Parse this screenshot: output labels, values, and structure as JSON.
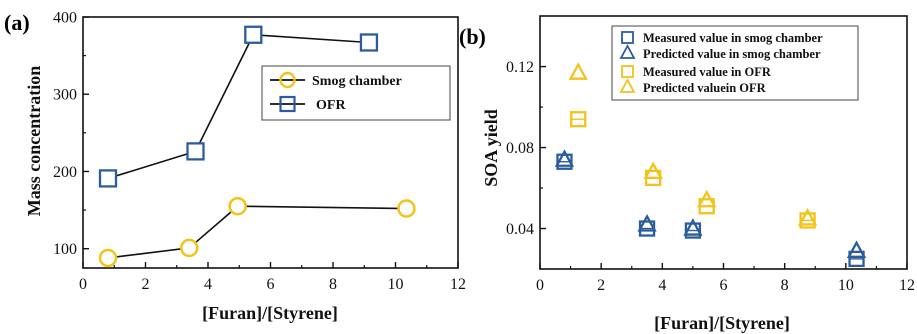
{
  "chart_data": [
    {
      "panel_label": "(a)",
      "type": "line",
      "xlabel": "[Furan]/[Styrene]",
      "ylabel": "Mass concentration",
      "xlim": [
        0,
        12
      ],
      "ylim": [
        75,
        400
      ],
      "x_ticks": [
        0,
        2,
        4,
        6,
        8,
        10,
        12
      ],
      "y_ticks": [
        100,
        200,
        300,
        400
      ],
      "legend_position": "upper-right",
      "series": [
        {
          "name": "Smog chamber",
          "marker": "circle",
          "color": "#F2C318",
          "x": [
            0.8,
            3.4,
            4.95,
            10.35
          ],
          "y": [
            88,
            101,
            155,
            152
          ]
        },
        {
          "name": "OFR",
          "marker": "square",
          "color": "#2B5D9C",
          "x": [
            0.8,
            3.6,
            5.45,
            9.15
          ],
          "y": [
            191,
            226,
            377,
            367
          ]
        }
      ]
    },
    {
      "panel_label": "(b)",
      "type": "scatter",
      "xlabel": "[Furan]/[Styrene]",
      "ylabel": "SOA yield",
      "xlim": [
        0,
        12
      ],
      "ylim": [
        0.02,
        0.145
      ],
      "x_ticks": [
        0,
        2,
        4,
        6,
        8,
        10,
        12
      ],
      "y_ticks": [
        0.04,
        0.08,
        0.12
      ],
      "legend_position": "top",
      "series": [
        {
          "name": "Measured value in smog chamber",
          "marker": "square",
          "color": "#2B5D9C",
          "x": [
            0.8,
            3.5,
            5.0,
            10.35
          ],
          "y": [
            0.073,
            0.04,
            0.039,
            0.025
          ]
        },
        {
          "name": "Predicted value in smog chamber",
          "marker": "triangle",
          "color": "#2B5D9C",
          "x": [
            0.8,
            3.5,
            5.0,
            10.35
          ],
          "y": [
            0.074,
            0.042,
            0.04,
            0.029
          ]
        },
        {
          "name": "Measured value in OFR",
          "marker": "square",
          "color": "#F2C318",
          "x": [
            1.25,
            3.7,
            5.45,
            8.75
          ],
          "y": [
            0.094,
            0.065,
            0.051,
            0.044
          ]
        },
        {
          "name": "Predicted valuein OFR",
          "marker": "triangle",
          "color": "#F2C318",
          "x": [
            1.25,
            3.7,
            5.45,
            8.75
          ],
          "y": [
            0.117,
            0.068,
            0.054,
            0.045
          ]
        }
      ]
    }
  ]
}
